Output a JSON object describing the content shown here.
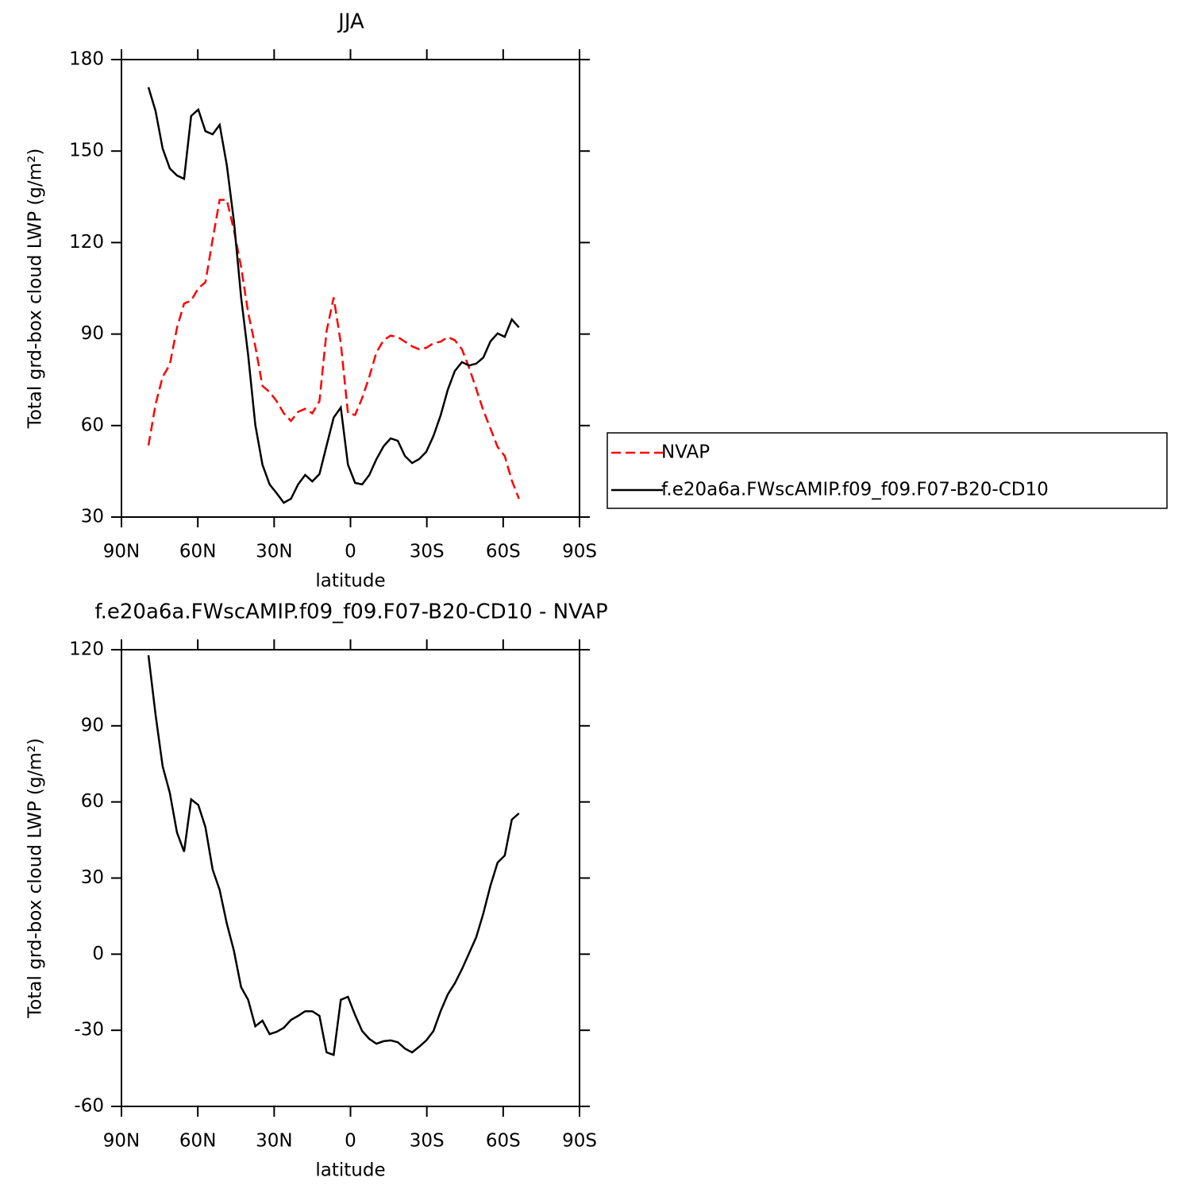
{
  "chart_data": [
    {
      "type": "line",
      "title": "JJA",
      "xlabel": "latitude",
      "ylabel": "Total grd-box cloud LWP (g/m²)",
      "x": [
        79.4,
        76.6,
        73.8,
        71.0,
        68.2,
        65.4,
        62.6,
        59.8,
        57.0,
        54.2,
        51.4,
        48.6,
        45.8,
        43.0,
        40.2,
        37.4,
        34.6,
        31.8,
        29.0,
        26.2,
        23.4,
        20.6,
        17.8,
        15.0,
        12.2,
        9.4,
        6.6,
        3.8,
        1.0,
        -1.8,
        -4.6,
        -7.4,
        -10.2,
        -13.0,
        -15.8,
        -18.6,
        -21.4,
        -24.2,
        -27.0,
        -29.8,
        -32.6,
        -35.4,
        -38.2,
        -41.0,
        -43.8,
        -46.6,
        -49.4,
        -52.2,
        -55.0,
        -57.8,
        -60.6,
        -63.4,
        -66.2
      ],
      "xlim": [
        90,
        -90
      ],
      "xticks": [
        {
          "value": 90,
          "label": "90N"
        },
        {
          "value": 60,
          "label": "60N"
        },
        {
          "value": 30,
          "label": "30N"
        },
        0,
        {
          "value": -30,
          "label": "30S"
        },
        {
          "value": -60,
          "label": "60S"
        },
        {
          "value": -90,
          "label": "90S"
        }
      ],
      "ylim": [
        30,
        180
      ],
      "yticks": [
        30,
        60,
        90,
        120,
        150,
        180
      ],
      "legend": "right",
      "series": [
        {
          "name": "NVAP",
          "color": "#ff0000",
          "dashed": true,
          "values": [
            53.5,
            67,
            76,
            80,
            92,
            100,
            101,
            105,
            107,
            121,
            134,
            134,
            124,
            112,
            97,
            86,
            73,
            71,
            68,
            64,
            61.5,
            64.5,
            65.5,
            64,
            68,
            91,
            102,
            87,
            64,
            63.5,
            69,
            76,
            84,
            88,
            89.5,
            89,
            87.5,
            86,
            85,
            85.5,
            87,
            87.5,
            89,
            88,
            85,
            79,
            72,
            65,
            59,
            53,
            50,
            42,
            36
          ]
        },
        {
          "name": "f.e20a6a.FWscAMIP.f09_f09.F07-B20-CD10",
          "color": "#000000",
          "dashed": false,
          "values": [
            170.9,
            163.1,
            150.8,
            144.3,
            142,
            140.9,
            161.5,
            163.6,
            156.5,
            155.5,
            158.6,
            145.4,
            126.9,
            102.1,
            83.1,
            60.2,
            47.2,
            40.7,
            37.8,
            34.7,
            36,
            40.7,
            43.8,
            41.7,
            44.1,
            53.4,
            62.6,
            65.9,
            47.2,
            41.2,
            40.7,
            43.8,
            49,
            53.2,
            55.8,
            55,
            50,
            47.7,
            49,
            51.4,
            56.6,
            63.3,
            71.7,
            77.9,
            80.8,
            79.7,
            80.3,
            82.3,
            87.6,
            90.2,
            89.1,
            94.8,
            92.2
          ]
        }
      ]
    },
    {
      "type": "line",
      "title": "f.e20a6a.FWscAMIP.f09_f09.F07-B20-CD10 - NVAP",
      "xlabel": "latitude",
      "ylabel": "Total grd-box cloud LWP (g/m²)",
      "x": [
        79.4,
        76.6,
        73.8,
        71.0,
        68.2,
        65.4,
        62.6,
        59.8,
        57.0,
        54.2,
        51.4,
        48.6,
        45.8,
        43.0,
        40.2,
        37.4,
        34.6,
        31.8,
        29.0,
        26.2,
        23.4,
        20.6,
        17.8,
        15.0,
        12.2,
        9.4,
        6.6,
        3.8,
        1.0,
        -1.8,
        -4.6,
        -7.4,
        -10.2,
        -13.0,
        -15.8,
        -18.6,
        -21.4,
        -24.2,
        -27.0,
        -29.8,
        -32.6,
        -35.4,
        -38.2,
        -41.0,
        -43.8,
        -46.6,
        -49.4,
        -52.2,
        -55.0,
        -57.8,
        -60.6,
        -63.4,
        -66.2
      ],
      "xlim": [
        90,
        -90
      ],
      "xticks": [
        {
          "value": 90,
          "label": "90N"
        },
        {
          "value": 60,
          "label": "60N"
        },
        {
          "value": 30,
          "label": "30N"
        },
        0,
        {
          "value": -30,
          "label": "30S"
        },
        {
          "value": -60,
          "label": "60S"
        },
        {
          "value": -90,
          "label": "90S"
        }
      ],
      "ylim": [
        -60,
        120
      ],
      "yticks": [
        -60,
        -30,
        0,
        30,
        60,
        90,
        120
      ],
      "series": [
        {
          "color": "#000000",
          "dashed": false,
          "values": [
            117.8,
            94.3,
            74,
            63.6,
            48,
            40.4,
            61,
            58.8,
            50,
            33.4,
            25.3,
            12.1,
            1.3,
            -13,
            -18,
            -28.4,
            -26.2,
            -31.5,
            -30.6,
            -29,
            -25.9,
            -24.3,
            -22.5,
            -22.5,
            -24.3,
            -38.7,
            -39.7,
            -18,
            -16.8,
            -24,
            -30.3,
            -33.4,
            -35.3,
            -34.3,
            -34,
            -34.7,
            -37.2,
            -38.7,
            -36.5,
            -34,
            -30.3,
            -22.5,
            -15.9,
            -11.5,
            -5.9,
            0.4,
            6.7,
            16,
            27,
            36.1,
            38.9,
            53,
            55.5
          ]
        }
      ]
    }
  ]
}
